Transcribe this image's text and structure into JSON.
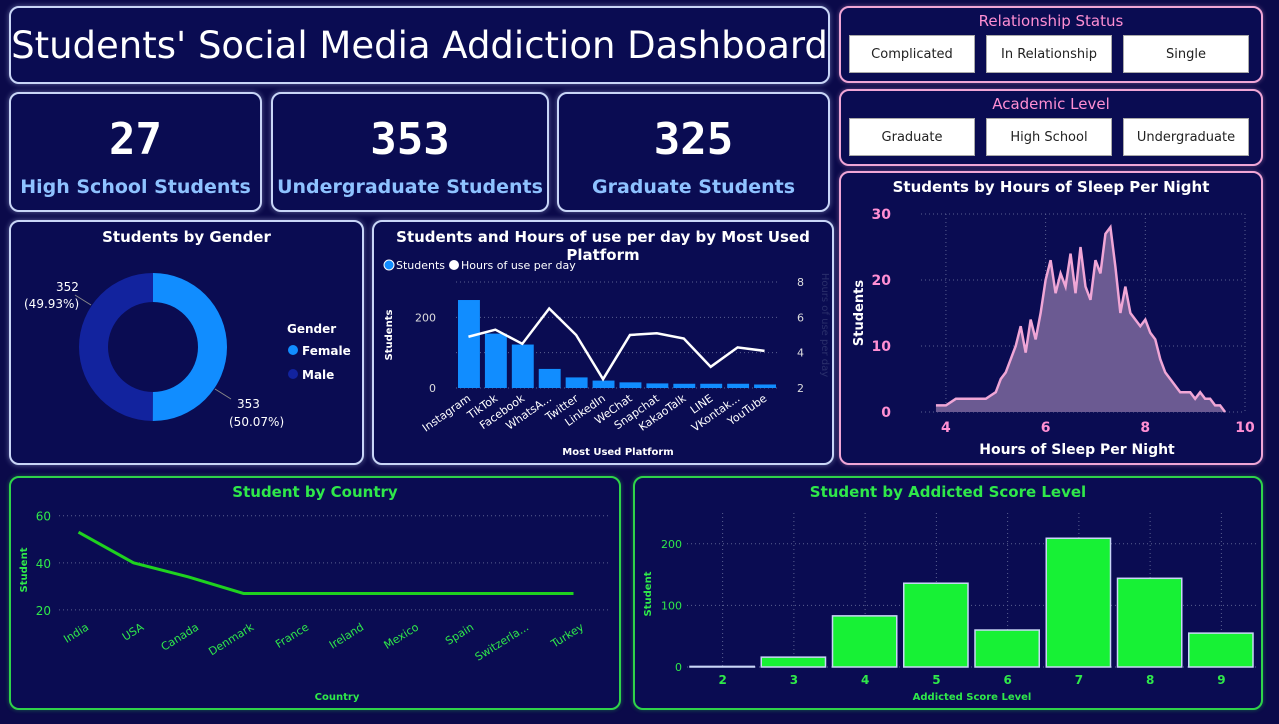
{
  "header": {
    "title": "Students' Social Media Addiction Dashboard"
  },
  "kpis": [
    {
      "value": "27",
      "label": "High School Students"
    },
    {
      "value": "353",
      "label": "Undergraduate Students"
    },
    {
      "value": "325",
      "label": "Graduate Students"
    }
  ],
  "slicers": {
    "relationship": {
      "title": "Relationship Status",
      "options": [
        "Complicated",
        "In Relationship",
        "Single"
      ]
    },
    "academic": {
      "title": "Academic Level",
      "options": [
        "Graduate",
        "High School",
        "Undergraduate"
      ]
    }
  },
  "colors": {
    "female": "#118dff",
    "male": "#12239e",
    "bar": "#118dff",
    "line": "#ffffff",
    "sleep_line": "#f0a6d6",
    "sleep_fill": "#6b5a92",
    "country_line": "#1fd21f",
    "addicted_bar": "#17f135",
    "pink_text": "#ff8fd3",
    "green_text": "#2fe84a"
  },
  "chart_data": [
    {
      "id": "gender",
      "type": "pie",
      "donut": true,
      "title": "Students by Gender",
      "legend_title": "Gender",
      "categories": [
        "Female",
        "Male"
      ],
      "values": [
        353,
        352
      ],
      "data_labels": [
        "353",
        "(50.07%)",
        "352",
        "(49.93%)"
      ]
    },
    {
      "id": "platform",
      "type": "bar",
      "title": "Students and Hours of use per day by Most Used Platform",
      "categories": [
        "Instagram",
        "TikTok",
        "Facebook",
        "WhatsA...",
        "Twitter",
        "LinkedIn",
        "WeChat",
        "Snapchat",
        "KakaoTalk",
        "LINE",
        "VKontak...",
        "YouTube"
      ],
      "series": [
        {
          "name": "Students",
          "type": "bar",
          "values": [
            249,
            154,
            123,
            54,
            30,
            21,
            16,
            13,
            12,
            12,
            12,
            10
          ]
        },
        {
          "name": "Hours of use per day",
          "type": "line",
          "axis": "secondary",
          "values": [
            4.9,
            5.3,
            4.5,
            6.5,
            5.0,
            2.5,
            5.0,
            5.1,
            4.8,
            3.2,
            4.3,
            4.1
          ]
        }
      ],
      "xlabel": "Most Used Platform",
      "ylabel": "Students",
      "y2label": "Hours of use per day",
      "ylim": [
        0,
        300
      ],
      "y2lim": [
        2,
        8
      ],
      "yticks": [
        "0",
        "200"
      ],
      "y2ticks": [
        "2",
        "4",
        "6",
        "8"
      ]
    },
    {
      "id": "sleep",
      "type": "area",
      "title": "Students by Hours of Sleep Per Night",
      "x": [
        3.8,
        4.0,
        4.2,
        4.4,
        4.6,
        4.8,
        5.0,
        5.1,
        5.2,
        5.3,
        5.4,
        5.5,
        5.6,
        5.7,
        5.8,
        5.9,
        6.0,
        6.1,
        6.2,
        6.3,
        6.4,
        6.5,
        6.6,
        6.7,
        6.8,
        6.9,
        7.0,
        7.1,
        7.2,
        7.3,
        7.4,
        7.5,
        7.6,
        7.7,
        7.8,
        7.9,
        8.0,
        8.1,
        8.2,
        8.3,
        8.4,
        8.5,
        8.6,
        8.7,
        8.8,
        8.9,
        9.0,
        9.1,
        9.2,
        9.3,
        9.4,
        9.5,
        9.6
      ],
      "y": [
        1,
        1,
        2,
        2,
        2,
        2,
        3,
        5,
        6,
        8,
        10,
        13,
        9,
        14,
        11,
        15,
        20,
        23,
        18,
        21,
        19,
        24,
        18,
        25,
        19,
        17,
        23,
        21,
        27,
        28,
        22,
        15,
        19,
        15,
        14,
        13,
        14,
        12,
        11,
        8,
        6,
        5,
        4,
        3,
        3,
        3,
        2,
        3,
        2,
        2,
        1,
        1,
        0
      ],
      "xlabel": "Hours of Sleep Per Night",
      "ylabel": "Students",
      "xlim": [
        3.5,
        10
      ],
      "ylim": [
        0,
        30
      ],
      "xticks": [
        "4",
        "6",
        "8",
        "10"
      ],
      "yticks": [
        "0",
        "10",
        "20",
        "30"
      ]
    },
    {
      "id": "country",
      "type": "line",
      "title": "Student by Country",
      "categories": [
        "India",
        "USA",
        "Canada",
        "Denmark",
        "France",
        "Ireland",
        "Mexico",
        "Spain",
        "Switzerla...",
        "Turkey"
      ],
      "values": [
        53,
        40,
        34,
        27,
        27,
        27,
        27,
        27,
        27,
        27
      ],
      "xlabel": "Country",
      "ylabel": "Student",
      "ylim": [
        17,
        62
      ],
      "yticks": [
        "20",
        "40",
        "60"
      ]
    },
    {
      "id": "addicted",
      "type": "bar",
      "title": "Student by Addicted Score Level",
      "categories": [
        "2",
        "3",
        "4",
        "5",
        "6",
        "7",
        "8",
        "9"
      ],
      "values": [
        1,
        16,
        83,
        136,
        60,
        209,
        144,
        55
      ],
      "xlabel": "Addicted Score Level",
      "ylabel": "Student",
      "ylim": [
        0,
        250
      ],
      "yticks": [
        "0",
        "100",
        "200"
      ]
    }
  ]
}
